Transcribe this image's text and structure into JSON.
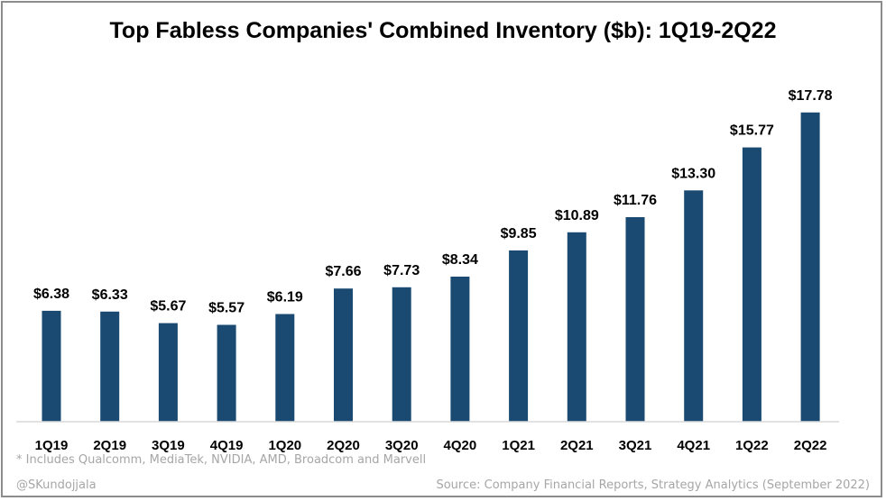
{
  "chart_data": {
    "type": "bar",
    "title": "Top Fabless Companies' Combined Inventory ($b): 1Q19-2Q22",
    "xlabel": "",
    "ylabel": "",
    "categories": [
      "1Q19",
      "2Q19",
      "3Q19",
      "4Q19",
      "1Q20",
      "2Q20",
      "3Q20",
      "4Q20",
      "1Q21",
      "2Q21",
      "3Q21",
      "4Q21",
      "1Q22",
      "2Q22"
    ],
    "values": [
      6.38,
      6.33,
      5.67,
      5.57,
      6.19,
      7.66,
      7.73,
      8.34,
      9.85,
      10.89,
      11.76,
      13.3,
      15.77,
      17.78
    ],
    "data_labels": [
      "$6.38",
      "$6.33",
      "$5.67",
      "$5.57",
      "$6.19",
      "$7.66",
      "$7.73",
      "$8.34",
      "$9.85",
      "$10.89",
      "$11.76",
      "$13.30",
      "$15.77",
      "$17.78"
    ],
    "ylim": [
      0,
      18.6
    ],
    "grid": false,
    "legend": "none",
    "bar_color": "#1a4a72"
  },
  "footnote": "* Includes Qualcomm, MediaTek, NVIDIA, AMD, Broadcom and Marvell",
  "handle": "@SKundojjala",
  "source": "Source: Company Financial Reports, Strategy Analytics (September 2022)"
}
